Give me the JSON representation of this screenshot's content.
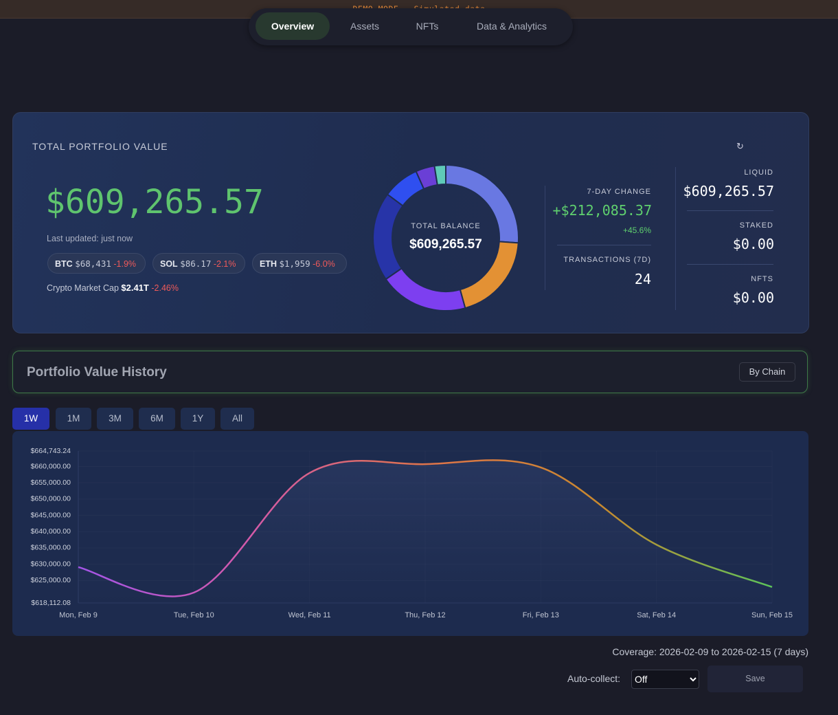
{
  "banner": "DEMO MODE - Simulated data",
  "nav": [
    "Overview",
    "Assets",
    "NFTs",
    "Data & Analytics"
  ],
  "portfolio": {
    "title": "TOTAL PORTFOLIO VALUE",
    "refresh_icon": "↻",
    "total": "$609,265.57",
    "last_updated": "Last updated: just now",
    "tickers": [
      {
        "symbol": "BTC",
        "price": "$68,431",
        "change": "-1.9%"
      },
      {
        "symbol": "SOL",
        "price": "$86.17",
        "change": "-2.1%"
      },
      {
        "symbol": "ETH",
        "price": "$1,959",
        "change": "-6.0%"
      }
    ],
    "market_cap": {
      "label": "Crypto Market Cap",
      "value": "$2.41T",
      "change": "-2.46%"
    },
    "donut": {
      "type": "pie",
      "center_label": "TOTAL BALANCE",
      "center_value": "$609,265.57",
      "values": [
        26.1,
        19.6,
        19.7,
        19.8,
        8.1,
        4.2,
        2.5
      ],
      "colors": [
        "#6978e2",
        "#e39134",
        "#7d3ff0",
        "#2734a8",
        "#2f4ff0",
        "#6a3fd6",
        "#5fcab8"
      ]
    },
    "stats": {
      "change_label": "7-DAY CHANGE",
      "change_value": "+$212,085.37",
      "change_pct": "+45.6%",
      "tx_label": "TRANSACTIONS (7D)",
      "tx_value": "24"
    },
    "breakdown": [
      {
        "label": "LIQUID",
        "value": "$609,265.57"
      },
      {
        "label": "STAKED",
        "value": "$0.00"
      },
      {
        "label": "NFTS",
        "value": "$0.00"
      }
    ]
  },
  "history": {
    "title": "Portfolio Value History",
    "by_chain": "By Chain",
    "ranges": [
      "1W",
      "1M",
      "3M",
      "6M",
      "1Y",
      "All"
    ],
    "type": "line",
    "categories": [
      "Mon, Feb 9",
      "Tue, Feb 10",
      "Wed, Feb 11",
      "Thu, Feb 12",
      "Fri, Feb 13",
      "Sat, Feb 14",
      "Sun, Feb 15"
    ],
    "values": [
      629100,
      621300,
      658000,
      660700,
      659700,
      636000,
      623000
    ],
    "colors": [
      "#a455e8",
      "#d45aa8",
      "#e0744a",
      "#c9892e",
      "#5cc45a"
    ],
    "ylim": [
      618112.08,
      664743.24
    ],
    "yticks": [
      {
        "value": 618112.08,
        "label": "$618,112.08"
      },
      {
        "value": 625000,
        "label": "$625,000.00"
      },
      {
        "value": 630000,
        "label": "$630,000.00"
      },
      {
        "value": 635000,
        "label": "$635,000.00"
      },
      {
        "value": 640000,
        "label": "$640,000.00"
      },
      {
        "value": 645000,
        "label": "$645,000.00"
      },
      {
        "value": 650000,
        "label": "$650,000.00"
      },
      {
        "value": 655000,
        "label": "$655,000.00"
      },
      {
        "value": 660000,
        "label": "$660,000.00"
      },
      {
        "value": 664743.24,
        "label": "$664,743.24"
      }
    ],
    "grid": true,
    "coverage": "Coverage: 2026-02-09 to 2026-02-15 (7 days)",
    "auto_collect_label": "Auto-collect:",
    "auto_collect_value": "Off",
    "save": "Save"
  }
}
